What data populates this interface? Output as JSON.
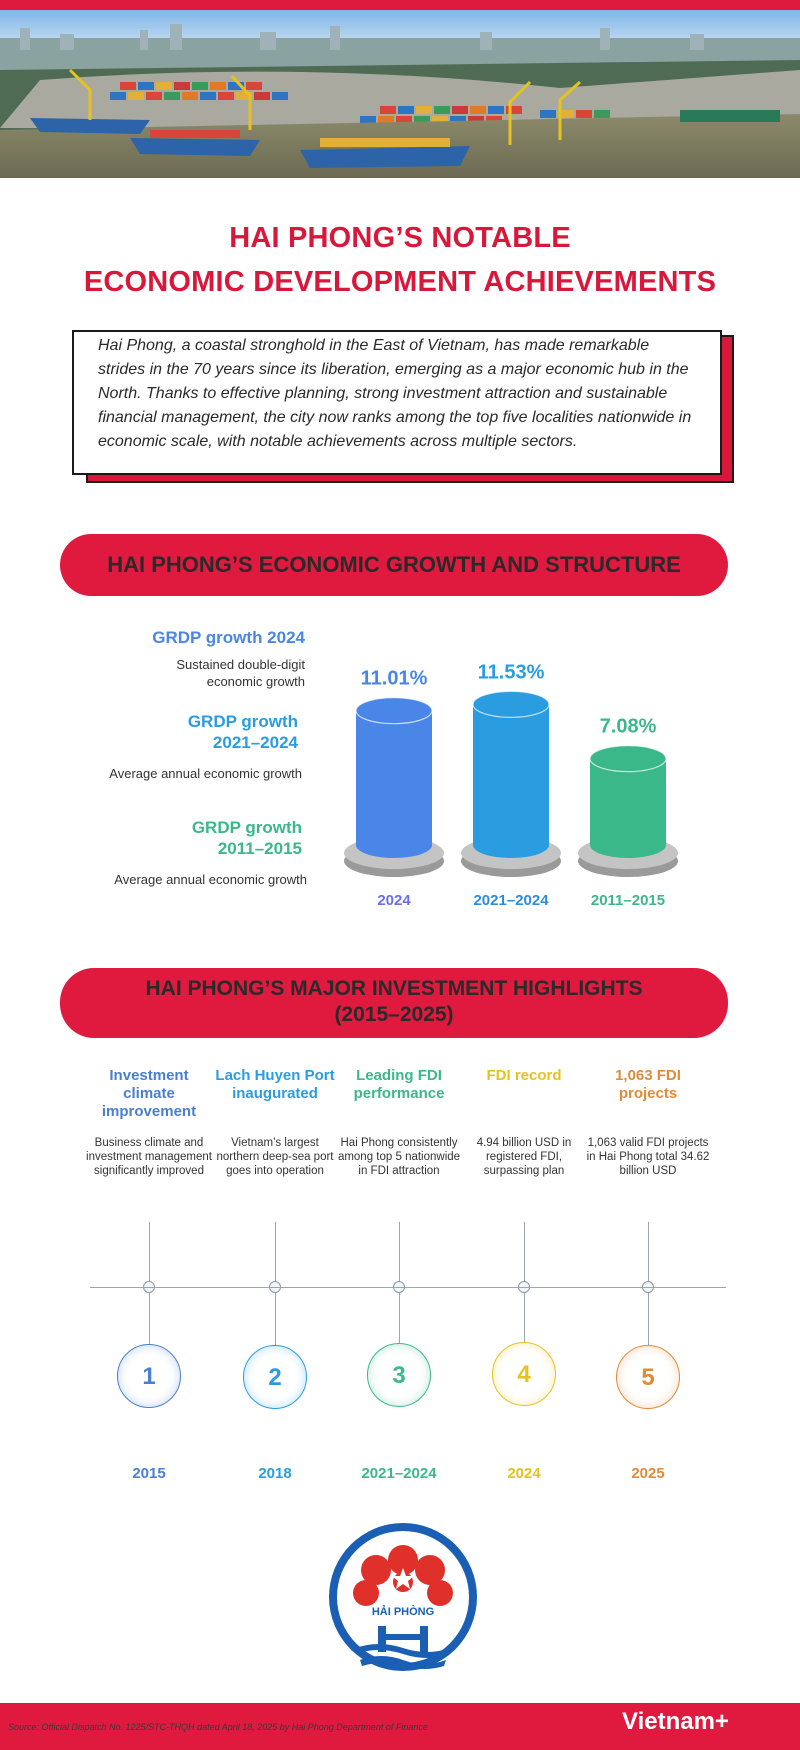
{
  "colors": {
    "brand_red": "#e0193f",
    "blue": "#4a86e8",
    "light_blue": "#2a9de0",
    "green": "#3bb88a",
    "yellow": "#e6c21f",
    "orange": "#e08b3a"
  },
  "title": {
    "line1": "HAI PHONG’S NOTABLE",
    "line2": "ECONOMIC DEVELOPMENT ACHIEVEMENTS"
  },
  "intro": "Hai Phong, a coastal stronghold in the East of Vietnam, has made remarkable strides in the 70 years since its liberation, emerging as a major economic hub in the North. Thanks to effective planning, strong investment attraction and sustainable financial management, the city now ranks among the top five localities nationwide in economic scale, with notable achievements across multiple sectors.",
  "growth_section": {
    "heading": "HAI PHONG’S ECONOMIC GROWTH AND STRUCTURE",
    "labels": [
      {
        "head": "GRDP growth 2024",
        "desc_line1": "Sustained double-digit",
        "desc_line2": "economic growth"
      },
      {
        "head_line1": "GRDP growth",
        "head_line2": "2021–2024",
        "desc": "Average annual economic growth"
      },
      {
        "head_line1": "GRDP growth",
        "head_line2": "2011–2015",
        "desc": "Average annual economic growth"
      }
    ]
  },
  "chart_data": {
    "type": "bar",
    "categories": [
      "2024",
      "2021–2024",
      "2011–2015"
    ],
    "values": [
      11.01,
      11.53,
      7.08
    ],
    "value_labels": [
      "11.01%",
      "11.53%",
      "7.08%"
    ],
    "bar_colors": [
      "#4a86e8",
      "#2a9de0",
      "#3bb88a"
    ],
    "label_colors": [
      "#4a86e8",
      "#2a9de0",
      "#3bb88a"
    ],
    "category_colors": [
      "#6a6ee8",
      "#2a8de0",
      "#3bb88a"
    ]
  },
  "investment_section": {
    "heading_line1": "HAI PHONG’S MAJOR INVESTMENT HIGHLIGHTS",
    "heading_line2": "(2015–2025)",
    "items": [
      {
        "title": "Investment climate improvement",
        "desc": "Business climate and investment management significantly improved",
        "number": "1",
        "year": "2015",
        "color": "#4a7fd0"
      },
      {
        "title": "Lach Huyen Port inaugurated",
        "desc": "Vietnam’s largest northern deep-sea port goes into operation",
        "number": "2",
        "year": "2018",
        "color": "#2a9de0"
      },
      {
        "title": "Leading FDI performance",
        "desc": "Hai Phong consistently among top 5 nationwide in FDI attraction",
        "number": "3",
        "year": "2021–2024",
        "color": "#3bb88a"
      },
      {
        "title": "FDI record",
        "desc": "4.94 billion USD in registered FDI, surpassing plan",
        "number": "4",
        "year": "2024",
        "color": "#e6c21f"
      },
      {
        "title": "1,063 FDI projects",
        "desc": "1,063 valid FDI projects in Hai Phong total 34.62 billion USD",
        "number": "5",
        "year": "2025",
        "color": "#e08b3a"
      }
    ]
  },
  "logo_text": "HẢI PHÒNG",
  "footer": {
    "source": "Source: Official Dispatch No. 1225/STC-THQH dated April 18, 2025 by Hai Phong Department of Finance",
    "brand": "Vietnam+"
  }
}
